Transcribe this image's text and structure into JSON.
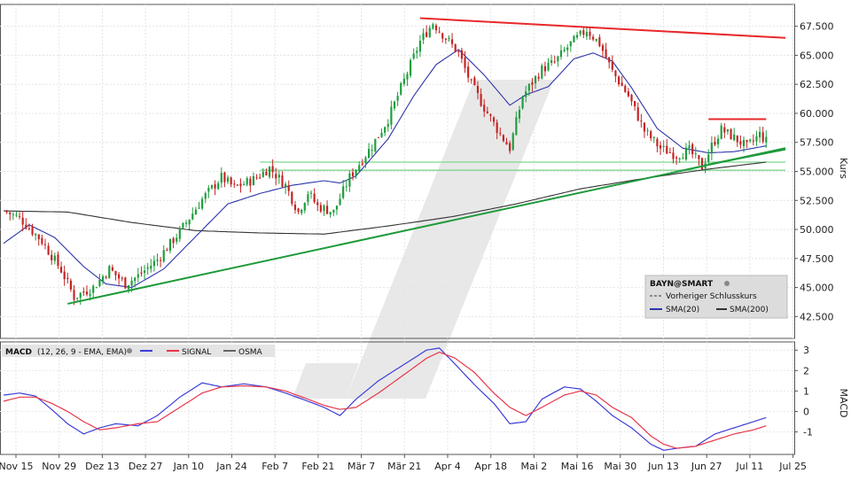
{
  "chart_data": [
    {
      "type": "candlestick",
      "title": "",
      "ylabel": "Kurs",
      "y_ticks": [
        42.5,
        45.0,
        47.5,
        50.0,
        52.5,
        55.0,
        57.5,
        60.0,
        62.5,
        65.0,
        67.5
      ],
      "y_tick_labels": [
        "42.500",
        "45.000",
        "47.500",
        "50.000",
        "52.500",
        "55.000",
        "57.500",
        "60.000",
        "62.500",
        "65.000",
        "67.500"
      ],
      "ylim": [
        41.0,
        69.0
      ],
      "x_ticks": [
        "Nov 15",
        "Nov 29",
        "Dez 13",
        "Dez 27",
        "Jan 10",
        "Jan 24",
        "Feb 7",
        "Feb 21",
        "Mär 7",
        "Mär 21",
        "Apr 4",
        "Apr 18",
        "Mai 2",
        "Mai 16",
        "Mai 30",
        "Jun 13",
        "Jun 27",
        "Jul 11",
        "Jul 25"
      ],
      "price_path": [
        [
          0,
          51.6
        ],
        [
          5,
          51.0
        ],
        [
          12,
          49.0
        ],
        [
          18,
          46.5
        ],
        [
          22,
          44.2
        ],
        [
          28,
          45.0
        ],
        [
          33,
          46.6
        ],
        [
          38,
          45.3
        ],
        [
          42,
          46.0
        ],
        [
          48,
          47.4
        ],
        [
          55,
          49.8
        ],
        [
          62,
          52.6
        ],
        [
          68,
          54.5
        ],
        [
          72,
          53.6
        ],
        [
          78,
          54.3
        ],
        [
          83,
          55.3
        ],
        [
          88,
          53.8
        ],
        [
          92,
          51.5
        ],
        [
          95,
          53.2
        ],
        [
          98,
          52.0
        ],
        [
          103,
          51.5
        ],
        [
          108,
          54.5
        ],
        [
          115,
          57.2
        ],
        [
          120,
          59.5
        ],
        [
          126,
          63.5
        ],
        [
          130,
          66.2
        ],
        [
          134,
          67.8
        ],
        [
          138,
          66.5
        ],
        [
          142,
          65.2
        ],
        [
          146,
          62.5
        ],
        [
          150,
          60.5
        ],
        [
          155,
          58.2
        ],
        [
          158,
          57.0
        ],
        [
          162,
          61.5
        ],
        [
          168,
          63.8
        ],
        [
          172,
          64.4
        ],
        [
          177,
          66.0
        ],
        [
          182,
          67.2
        ],
        [
          186,
          66.0
        ],
        [
          190,
          63.6
        ],
        [
          195,
          61.5
        ],
        [
          200,
          58.5
        ],
        [
          205,
          57.0
        ],
        [
          210,
          56.4
        ],
        [
          214,
          56.8
        ],
        [
          218,
          55.4
        ],
        [
          221,
          57.2
        ],
        [
          224,
          58.6
        ],
        [
          228,
          57.9
        ],
        [
          232,
          57.1
        ],
        [
          236,
          58.2
        ],
        [
          238,
          57.6
        ]
      ],
      "volatility": 0.9,
      "sma20": [
        [
          0,
          48.8
        ],
        [
          8,
          50.4
        ],
        [
          16,
          49.3
        ],
        [
          25,
          46.8
        ],
        [
          32,
          45.3
        ],
        [
          40,
          45.0
        ],
        [
          50,
          46.6
        ],
        [
          60,
          49.4
        ],
        [
          70,
          52.2
        ],
        [
          80,
          53.1
        ],
        [
          90,
          53.8
        ],
        [
          100,
          54.2
        ],
        [
          105,
          54.0
        ],
        [
          110,
          54.6
        ],
        [
          120,
          57.8
        ],
        [
          128,
          61.5
        ],
        [
          135,
          64.2
        ],
        [
          142,
          65.5
        ],
        [
          150,
          63.3
        ],
        [
          158,
          60.7
        ],
        [
          163,
          61.6
        ],
        [
          170,
          62.3
        ],
        [
          178,
          64.7
        ],
        [
          184,
          65.2
        ],
        [
          190,
          64.5
        ],
        [
          196,
          62.2
        ],
        [
          204,
          58.7
        ],
        [
          212,
          57.0
        ],
        [
          220,
          56.6
        ],
        [
          228,
          56.7
        ],
        [
          238,
          57.2
        ]
      ],
      "sma200": [
        [
          0,
          51.6
        ],
        [
          20,
          51.5
        ],
        [
          40,
          50.6
        ],
        [
          60,
          49.9
        ],
        [
          80,
          49.7
        ],
        [
          100,
          49.6
        ],
        [
          120,
          50.3
        ],
        [
          140,
          51.1
        ],
        [
          160,
          52.2
        ],
        [
          180,
          53.5
        ],
        [
          200,
          54.4
        ],
        [
          220,
          55.2
        ],
        [
          238,
          55.8
        ]
      ],
      "trendlines": [
        {
          "color": "#e8282a",
          "from": [
            130,
            68.2
          ],
          "to": [
            244,
            66.5
          ]
        },
        {
          "color": "#1e9a3a",
          "from": [
            20,
            43.6
          ],
          "to": [
            244,
            57.0
          ]
        },
        {
          "color": "#1e9a3a",
          "from": [
            220,
            55.6
          ],
          "to": [
            244,
            56.9
          ]
        },
        {
          "color": "#e8282a",
          "from": [
            220,
            59.5
          ],
          "to": [
            238,
            59.5
          ]
        }
      ],
      "support_lines": [
        {
          "color": "#7fd68f",
          "y": 55.8,
          "from_x": 80,
          "to_x": 244
        },
        {
          "color": "#7fd68f",
          "y": 55.1,
          "from_x": 80,
          "to_x": 244
        }
      ],
      "legend": {
        "placement": "bottom-right",
        "symbol": "BAYN@SMART",
        "entries": [
          "Vorheriger Schlusskurs",
          "SMA(20)",
          "SMA(200)"
        ]
      },
      "colors": {
        "up": "#1f9d3d",
        "down": "#c42424",
        "sma20": "#2d35a8",
        "sma200": "#333333"
      }
    },
    {
      "type": "line",
      "title": "",
      "ylabel": "MACD",
      "legend": {
        "placement": "top-left",
        "label": "MACD",
        "params": "(12, 26, 9 - EMA, EMA)",
        "entries": [
          "SIGNAL",
          "OSMA"
        ]
      },
      "y_ticks": [
        -1,
        0,
        1,
        2,
        3
      ],
      "y_tick_labels": [
        "-1",
        "0",
        "1",
        "2",
        "3"
      ],
      "ylim": [
        -2.1,
        3.4
      ],
      "series": [
        {
          "color": "#3d3dd8",
          "values": [
            [
              0,
              0.8
            ],
            [
              5,
              0.9
            ],
            [
              10,
              0.75
            ],
            [
              15,
              0.1
            ],
            [
              20,
              -0.6
            ],
            [
              25,
              -1.1
            ],
            [
              30,
              -0.8
            ],
            [
              35,
              -0.6
            ],
            [
              42,
              -0.7
            ],
            [
              48,
              -0.2
            ],
            [
              55,
              0.7
            ],
            [
              62,
              1.4
            ],
            [
              68,
              1.2
            ],
            [
              75,
              1.35
            ],
            [
              82,
              1.2
            ],
            [
              88,
              0.9
            ],
            [
              95,
              0.5
            ],
            [
              100,
              0.2
            ],
            [
              105,
              -0.2
            ],
            [
              110,
              0.6
            ],
            [
              117,
              1.5
            ],
            [
              125,
              2.3
            ],
            [
              132,
              3.0
            ],
            [
              136,
              3.1
            ],
            [
              141,
              2.3
            ],
            [
              147,
              1.3
            ],
            [
              153,
              0.4
            ],
            [
              158,
              -0.6
            ],
            [
              163,
              -0.5
            ],
            [
              168,
              0.6
            ],
            [
              175,
              1.2
            ],
            [
              180,
              1.1
            ],
            [
              185,
              0.5
            ],
            [
              190,
              -0.2
            ],
            [
              196,
              -0.8
            ],
            [
              202,
              -1.6
            ],
            [
              206,
              -1.9
            ],
            [
              210,
              -1.8
            ],
            [
              216,
              -1.7
            ],
            [
              222,
              -1.1
            ],
            [
              228,
              -0.8
            ],
            [
              234,
              -0.5
            ],
            [
              238,
              -0.3
            ]
          ]
        },
        {
          "color": "#e8364a",
          "values": [
            [
              0,
              0.5
            ],
            [
              5,
              0.7
            ],
            [
              10,
              0.7
            ],
            [
              15,
              0.4
            ],
            [
              20,
              0.0
            ],
            [
              25,
              -0.5
            ],
            [
              30,
              -0.9
            ],
            [
              35,
              -0.8
            ],
            [
              42,
              -0.6
            ],
            [
              48,
              -0.5
            ],
            [
              55,
              0.2
            ],
            [
              62,
              0.9
            ],
            [
              68,
              1.2
            ],
            [
              75,
              1.25
            ],
            [
              82,
              1.2
            ],
            [
              88,
              1.0
            ],
            [
              95,
              0.6
            ],
            [
              100,
              0.3
            ],
            [
              105,
              0.1
            ],
            [
              110,
              0.2
            ],
            [
              117,
              0.9
            ],
            [
              125,
              1.8
            ],
            [
              132,
              2.6
            ],
            [
              136,
              2.9
            ],
            [
              141,
              2.6
            ],
            [
              147,
              1.9
            ],
            [
              153,
              0.9
            ],
            [
              158,
              0.2
            ],
            [
              163,
              -0.2
            ],
            [
              168,
              0.2
            ],
            [
              175,
              0.8
            ],
            [
              180,
              1.0
            ],
            [
              185,
              0.8
            ],
            [
              190,
              0.2
            ],
            [
              196,
              -0.3
            ],
            [
              202,
              -1.2
            ],
            [
              206,
              -1.6
            ],
            [
              210,
              -1.8
            ],
            [
              216,
              -1.7
            ],
            [
              222,
              -1.4
            ],
            [
              228,
              -1.1
            ],
            [
              234,
              -0.9
            ],
            [
              238,
              -0.7
            ]
          ]
        },
        {
          "color": "#666666",
          "values": []
        }
      ]
    }
  ]
}
